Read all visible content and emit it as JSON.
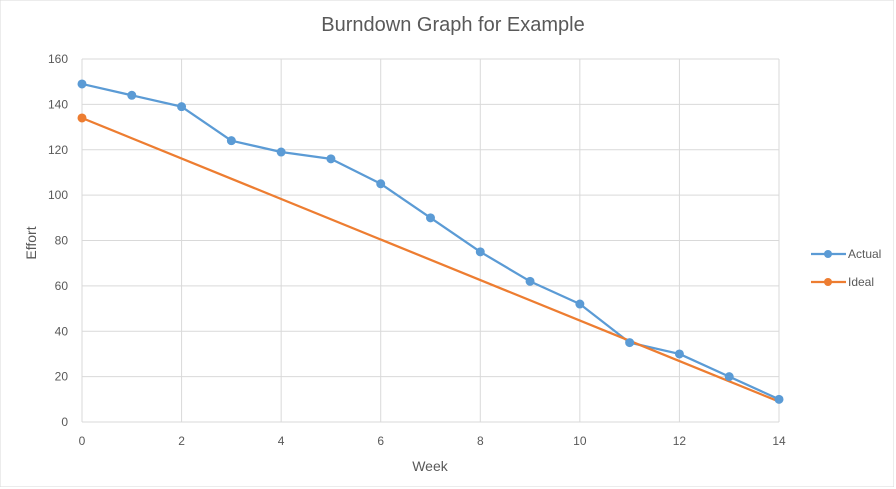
{
  "chart_data": {
    "type": "line",
    "title": "Burndown Graph for Example",
    "xlabel": "Week",
    "ylabel": "Effort",
    "xlim": [
      0,
      14
    ],
    "ylim": [
      0,
      160
    ],
    "xticks": [
      "0",
      "2",
      "4",
      "6",
      "8",
      "10",
      "12",
      "14"
    ],
    "yticks": [
      "0",
      "20",
      "40",
      "60",
      "80",
      "100",
      "120",
      "140",
      "160"
    ],
    "grid": true,
    "legend_position": "right",
    "series": [
      {
        "name": "Actual",
        "color": "#5B9BD5",
        "marker": "circle",
        "x": [
          0,
          1,
          2,
          3,
          4,
          5,
          6,
          7,
          8,
          9,
          10,
          11,
          12,
          13,
          14
        ],
        "y": [
          149,
          144,
          139,
          124,
          119,
          116,
          105,
          90,
          75,
          62,
          52,
          35,
          30,
          20,
          10
        ]
      },
      {
        "name": "Ideal",
        "color": "#ED7D31",
        "marker": "circle-ends",
        "x": [
          0,
          14
        ],
        "y": [
          134,
          9
        ]
      }
    ]
  }
}
